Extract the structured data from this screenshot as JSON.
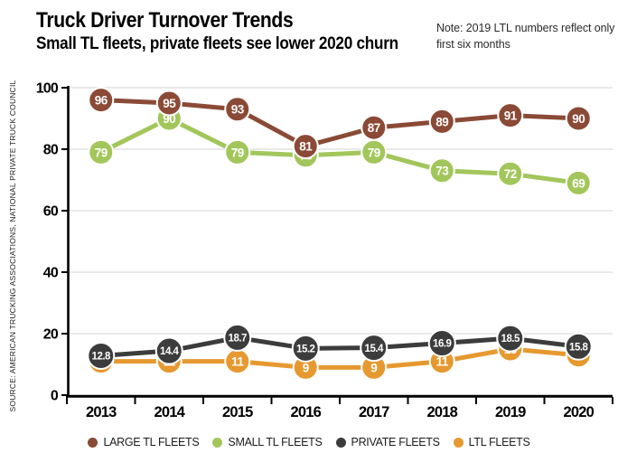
{
  "header": {
    "title": "Truck Driver Turnover Trends",
    "subtitle": "Small TL fleets, private fleets see lower 2020 churn",
    "note": {
      "line1": "Note: 2019 LTL numbers reflect only",
      "line2": "first six months"
    }
  },
  "source": "SOURCE: AMERICAN TRUCKING ASSOCIATIONS, NATIONAL PRIVATE TRUCK COUNCIL",
  "chart_data": {
    "type": "line",
    "title": "Truck Driver Turnover Trends",
    "subtitle": "Small TL fleets, private fleets see lower 2020 churn",
    "categories": [
      "2013",
      "2014",
      "2015",
      "2016",
      "2017",
      "2018",
      "2019",
      "2020"
    ],
    "series": [
      {
        "name": "LARGE TL FLEETS",
        "color": "#8a4a36",
        "values": [
          96,
          95,
          93,
          81,
          87,
          89,
          91,
          90
        ]
      },
      {
        "name": "SMALL TL FLEETS",
        "color": "#a2c65b",
        "values": [
          79,
          90,
          79,
          78,
          79,
          73,
          72,
          69
        ]
      },
      {
        "name": "PRIVATE FLEETS",
        "color": "#3c3c3c",
        "values": [
          12.8,
          14.4,
          18.7,
          15.2,
          15.4,
          16.9,
          18.5,
          15.8
        ]
      },
      {
        "name": "LTL FLEETS",
        "color": "#e6992f",
        "values": [
          11,
          11,
          11,
          9,
          9,
          11,
          15,
          13
        ]
      }
    ],
    "xlabel": "",
    "ylabel": "",
    "ylim": [
      0,
      100
    ],
    "yticks": [
      0,
      20,
      40,
      60,
      80,
      100
    ],
    "grid": true,
    "grid_color": "#e2e2e2",
    "axis_color": "#000000",
    "point_label_color": "#ffffff",
    "legend_position": "bottom"
  }
}
